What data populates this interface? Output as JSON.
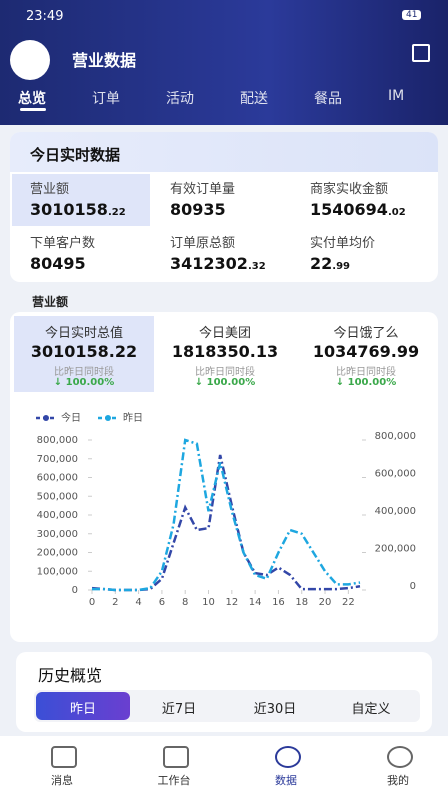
{
  "status": {
    "time": "23:49",
    "battery": "41"
  },
  "header": {
    "title": "营业数据",
    "tabs": [
      "总览",
      "订单",
      "活动",
      "配送",
      "餐品",
      "IM"
    ]
  },
  "realtime": {
    "title": "今日实时数据",
    "metrics": [
      {
        "label": "营业额",
        "main": "3010158",
        "decimal": ".22"
      },
      {
        "label": "有效订单量",
        "main": "80935"
      },
      {
        "label": "商家实收金额",
        "main": "1540694",
        "decimal": ".02"
      },
      {
        "label": "下单客户数",
        "main": "80495"
      },
      {
        "label": "订单原总额",
        "main": "3412302",
        "decimal": ".32"
      },
      {
        "label": "实付单均价",
        "main": "22",
        "decimal": ".99"
      }
    ]
  },
  "revenue": {
    "title": "营业额",
    "cards": [
      {
        "label": "今日实时总值",
        "value": "3010158.22",
        "compare": "比昨日同时段",
        "change": "↓ 100.00%"
      },
      {
        "label": "今日美团",
        "value": "1818350.13",
        "compare": "比昨日同时段",
        "change": "↓ 100.00%"
      },
      {
        "label": "今日饿了么",
        "value": "1034769.99",
        "compare": "比昨日同时段",
        "change": "↓ 100.00%"
      }
    ]
  },
  "chart_data": {
    "type": "line",
    "x": [
      0,
      1,
      2,
      3,
      4,
      5,
      6,
      7,
      8,
      9,
      10,
      11,
      12,
      13,
      14,
      15,
      16,
      17,
      18,
      19,
      20,
      21,
      22,
      23
    ],
    "xlim": [
      0,
      23
    ],
    "xticks": [
      0,
      2,
      4,
      6,
      8,
      10,
      12,
      14,
      16,
      18,
      20,
      22
    ],
    "ylim": [
      0,
      800000
    ],
    "yticks": [
      0,
      {
        "value": 100000,
        "label": "100,000"
      },
      {
        "value": 200000,
        "label": "200,000"
      },
      {
        "value": 300000,
        "label": "300,000"
      },
      {
        "value": 400000,
        "label": "400,000"
      },
      {
        "value": 500000,
        "label": "500,000"
      },
      {
        "value": 600000,
        "label": "600,000"
      },
      {
        "value": 700000,
        "label": "700,000"
      },
      {
        "value": 800000,
        "label": "800,000"
      }
    ],
    "y2lim": [
      0,
      800000
    ],
    "y2ticks": [
      0,
      {
        "value": 200000,
        "label": "200,000"
      },
      {
        "value": 400000,
        "label": "400,000"
      },
      {
        "value": 600000,
        "label": "600,000"
      },
      {
        "value": 800000,
        "label": "800,000"
      }
    ],
    "series": [
      {
        "name": "今日",
        "color": "#3347a8",
        "values": [
          10000,
          5000,
          0,
          0,
          0,
          5000,
          60000,
          250000,
          440000,
          320000,
          330000,
          720000,
          450000,
          200000,
          90000,
          80000,
          120000,
          80000,
          5000,
          5000,
          5000,
          5000,
          10000,
          20000
        ]
      },
      {
        "name": "昨日",
        "color": "#1ea7e0",
        "axis": "y2",
        "values": [
          5000,
          5000,
          0,
          0,
          0,
          10000,
          100000,
          350000,
          800000,
          780000,
          420000,
          680000,
          420000,
          200000,
          80000,
          60000,
          200000,
          320000,
          300000,
          200000,
          100000,
          30000,
          30000,
          40000
        ]
      }
    ]
  },
  "history": {
    "title": "历史概览",
    "ranges": [
      "昨日",
      "近7日",
      "近30日",
      "自定义"
    ]
  },
  "nav": [
    "消息",
    "工作台",
    "数据",
    "我的"
  ]
}
